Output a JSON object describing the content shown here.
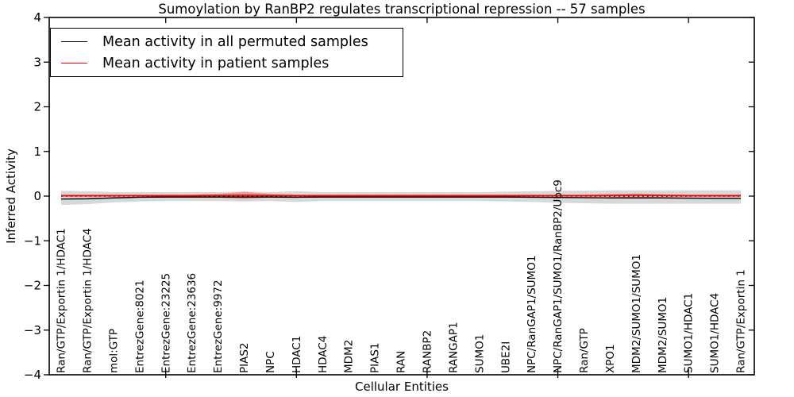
{
  "figure": {
    "title": "Sumoylation by RanBP2 regulates transcriptional repression -- 57 samples",
    "xlabel": "Cellular Entities",
    "ylabel": "Inferred Activity"
  },
  "legend": {
    "items": [
      {
        "label": "Mean activity in all permuted samples",
        "color": "#000000"
      },
      {
        "label": "Mean activity in patient samples",
        "color": "#ff0000"
      }
    ]
  },
  "chart_data": {
    "type": "line",
    "title": "Sumoylation by RanBP2 regulates transcriptional repression -- 57 samples",
    "xlabel": "Cellular Entities",
    "ylabel": "Inferred Activity",
    "ylim": [
      -4,
      4
    ],
    "yticks": [
      4,
      3,
      2,
      1,
      0,
      -1,
      -2,
      -3,
      -4
    ],
    "x_major_tick_indices": [
      4,
      9,
      14,
      19,
      24
    ],
    "grid": false,
    "legend_position": "upper left",
    "categories": [
      "Ran/GTP/Exportin 1/HDAC1",
      "Ran/GTP/Exportin 1/HDAC4",
      "mol:GTP",
      "EntrezGene:8021",
      "EntrezGene:23225",
      "EntrezGene:23636",
      "EntrezGene:9972",
      "PIAS2",
      "NPC",
      "HDAC1",
      "HDAC4",
      "MDM2",
      "PIAS1",
      "RAN",
      "RANBP2",
      "RANGAP1",
      "SUMO1",
      "UBE2I",
      "NPC/RanGAP1/SUMO1",
      "NPC/RanGAP1/SUMO1/RanBP2/Ubc9",
      "Ran/GTP",
      "XPO1",
      "MDM2/SUMO1/SUMO1",
      "MDM2/SUMO1",
      "SUMO1/HDAC1",
      "SUMO1/HDAC4",
      "Ran/GTP/Exportin 1"
    ],
    "series": [
      {
        "name": "Mean activity in all permuted samples",
        "color": "#000000",
        "style": "solid",
        "width": 1.4,
        "values": [
          -0.065,
          -0.06,
          -0.04,
          -0.025,
          -0.02,
          -0.02,
          -0.02,
          -0.02,
          -0.02,
          -0.025,
          -0.02,
          -0.02,
          -0.02,
          -0.02,
          -0.02,
          -0.02,
          -0.02,
          -0.02,
          -0.025,
          -0.03,
          -0.035,
          -0.04,
          -0.04,
          -0.04,
          -0.045,
          -0.05,
          -0.05
        ]
      },
      {
        "name": "Mean activity in patient samples",
        "color": "#ff0000",
        "style": "solid",
        "width": 1.8,
        "values": [
          0.01,
          0.01,
          0.01,
          0.01,
          0.01,
          0.01,
          0.015,
          0.02,
          0.015,
          0.01,
          0.01,
          0.01,
          0.01,
          0.01,
          0.01,
          0.01,
          0.01,
          0.01,
          0.01,
          0.01,
          0.01,
          0.015,
          0.02,
          0.015,
          0.01,
          0.01,
          0.01
        ]
      }
    ],
    "bands": [
      {
        "name": "permuted samples activity range",
        "color": "#999999",
        "opacity": 0.38,
        "upper": [
          0.12,
          0.11,
          0.09,
          0.09,
          0.09,
          0.09,
          0.09,
          0.1,
          0.09,
          0.11,
          0.09,
          0.09,
          0.09,
          0.09,
          0.09,
          0.09,
          0.09,
          0.1,
          0.11,
          0.12,
          0.12,
          0.13,
          0.13,
          0.13,
          0.13,
          0.13,
          0.13
        ],
        "lower": [
          -0.2,
          -0.18,
          -0.14,
          -0.12,
          -0.11,
          -0.11,
          -0.11,
          -0.12,
          -0.11,
          -0.13,
          -0.11,
          -0.11,
          -0.11,
          -0.11,
          -0.11,
          -0.11,
          -0.11,
          -0.12,
          -0.13,
          -0.15,
          -0.16,
          -0.17,
          -0.17,
          -0.17,
          -0.17,
          -0.17,
          -0.17
        ]
      },
      {
        "name": "patient samples activity range",
        "color": "#ff0000",
        "opacity": 0.25,
        "upper": [
          0.03,
          0.03,
          0.03,
          0.03,
          0.03,
          0.03,
          0.05,
          0.1,
          0.05,
          0.03,
          0.03,
          0.03,
          0.03,
          0.03,
          0.03,
          0.03,
          0.03,
          0.03,
          0.03,
          0.03,
          0.03,
          0.04,
          0.06,
          0.04,
          0.03,
          0.03,
          0.03
        ],
        "lower": [
          -0.01,
          -0.01,
          -0.01,
          -0.01,
          -0.01,
          -0.01,
          -0.03,
          -0.07,
          -0.03,
          -0.01,
          -0.01,
          -0.01,
          -0.01,
          -0.01,
          -0.01,
          -0.01,
          -0.01,
          -0.01,
          -0.01,
          -0.01,
          -0.01,
          -0.02,
          -0.03,
          -0.02,
          -0.01,
          -0.01,
          -0.01
        ]
      }
    ],
    "zero_line": {
      "value": 0,
      "style": "dotted",
      "color": "#000000"
    }
  }
}
